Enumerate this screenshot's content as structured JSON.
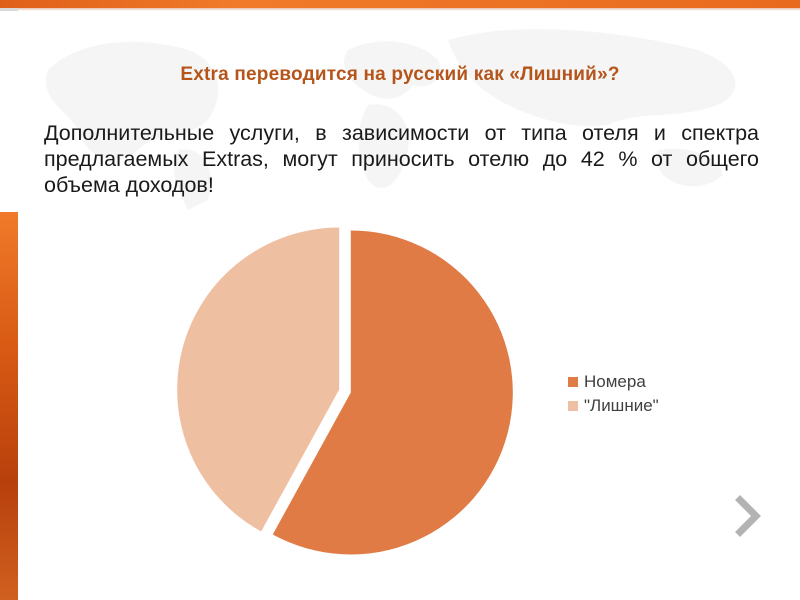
{
  "slide": {
    "heading": "Extra переводится на русский как «Лишний»?",
    "paragraph": "Дополнительные услуги, в зависимости от типа отеля и спектра предлагаемых Extras, могут приносить отелю до 42 % от общего объема доходов!"
  },
  "navigation": {
    "next_icon": "chevron-right-icon"
  },
  "colors": {
    "accent_orange": "#e86a1e",
    "heading": "#b5551b",
    "series_rooms": "#e07b45",
    "series_extras": "#efbfa2"
  },
  "chart_data": {
    "type": "pie",
    "categories": [
      "Номера",
      "\"Лишние\""
    ],
    "values": [
      58,
      42
    ],
    "colors": [
      "#e07b45",
      "#efbfa2"
    ],
    "exploded": true,
    "legend": "right"
  }
}
